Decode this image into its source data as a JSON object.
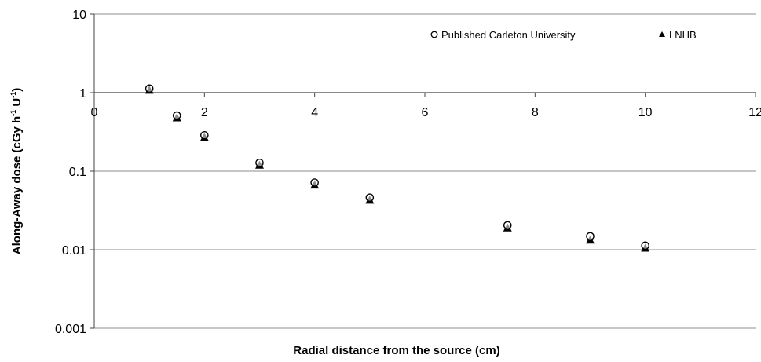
{
  "chart_data": {
    "type": "scatter",
    "xlabel": "Radial distance from the source (cm)",
    "ylabel": "Along-Away dose (cGy h",
    "ylabel_sup1": "-1",
    "ylabel_mid": " U",
    "ylabel_sup2": "-1",
    "ylabel_end": ")",
    "xlim": [
      0,
      12
    ],
    "ylim": [
      0.001,
      10
    ],
    "yscale": "log",
    "x_ticks": [
      "0",
      "2",
      "4",
      "6",
      "8",
      "10",
      "12"
    ],
    "y_ticks": [
      "0.001",
      "0.01",
      "0.1",
      "1",
      "10"
    ],
    "grid": "horizontal",
    "legend_position": "top-right",
    "series": [
      {
        "name": "Published Carleton University",
        "marker": "circle",
        "color": "#000000",
        "x": [
          1,
          1.5,
          2,
          3,
          4,
          5,
          7.5,
          9,
          10
        ],
        "y": [
          1.1,
          0.5,
          0.28,
          0.125,
          0.07,
          0.045,
          0.02,
          0.0145,
          0.011
        ]
      },
      {
        "name": "LNHB",
        "marker": "triangle",
        "color": "#000000",
        "x": [
          1,
          1.5,
          2,
          3,
          4,
          5,
          7.5,
          9,
          10
        ],
        "y": [
          1.08,
          0.48,
          0.27,
          0.12,
          0.067,
          0.043,
          0.019,
          0.0133,
          0.0105
        ]
      }
    ]
  }
}
